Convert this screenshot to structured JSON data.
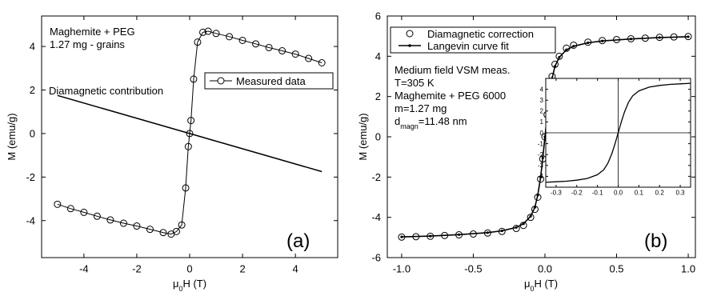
{
  "chart_data": [
    {
      "panel": "(a)",
      "type": "scatter",
      "xlabel": "μ₀H (T)",
      "ylabel": "M (emu/g)",
      "xlim": [
        -5.6,
        5.6
      ],
      "ylim": [
        -5.7,
        5.4
      ],
      "xticks": [
        -4,
        -2,
        0,
        2,
        4
      ],
      "xtick_labels": [
        "-4",
        "-2",
        "0",
        "2",
        "4"
      ],
      "yticks": [
        -4,
        -2,
        0,
        2,
        4
      ],
      "ytick_labels": [
        "-4",
        "-2",
        "0",
        "2",
        "4"
      ],
      "annotations": [
        "Maghemite + PEG",
        "1.27 mg - grains",
        "Diamagnetic contribution"
      ],
      "panel_label": "(a)",
      "legend": {
        "position": "right",
        "entries": [
          "Measured data"
        ]
      },
      "series": [
        {
          "name": "Measured data",
          "style": "line-open-circle",
          "x": [
            -5.0,
            -4.5,
            -4.0,
            -3.5,
            -3.0,
            -2.5,
            -2.0,
            -1.5,
            -1.0,
            -0.7,
            -0.5,
            -0.3,
            -0.15,
            -0.05,
            0.0,
            0.05,
            0.15,
            0.3,
            0.5,
            0.7,
            1.0,
            1.5,
            2.0,
            2.5,
            3.0,
            3.5,
            4.0,
            4.5,
            5.0
          ],
          "y": [
            -3.25,
            -3.45,
            -3.62,
            -3.8,
            -3.97,
            -4.12,
            -4.25,
            -4.4,
            -4.55,
            -4.62,
            -4.5,
            -4.2,
            -2.5,
            -0.6,
            0.0,
            0.6,
            2.5,
            4.2,
            4.65,
            4.7,
            4.6,
            4.45,
            4.28,
            4.12,
            3.95,
            3.8,
            3.65,
            3.45,
            3.25
          ]
        },
        {
          "name": "Diamagnetic contribution",
          "style": "line",
          "x": [
            -5.0,
            5.0
          ],
          "y": [
            1.75,
            -1.75
          ]
        }
      ]
    },
    {
      "panel": "(b)",
      "type": "scatter",
      "xlabel": "μ₀H (T)",
      "ylabel": "M (emu/g)",
      "xlim": [
        -1.1,
        1.05
      ],
      "ylim": [
        -6,
        6
      ],
      "xticks": [
        -1.0,
        -0.5,
        0.0,
        0.5,
        1.0
      ],
      "xtick_labels": [
        "-1.0",
        "-0.5",
        "0.0",
        "0.5",
        "1.0"
      ],
      "yticks": [
        -6,
        -4,
        -2,
        0,
        2,
        4,
        6
      ],
      "ytick_labels": [
        "-6",
        "-4",
        "-2",
        "0",
        "2",
        "4",
        "6"
      ],
      "annotations": [
        "Medium field VSM meas.",
        "T=305 K",
        "Maghemite + PEG 6000",
        "m=1.27 mg",
        "d",
        "magn",
        "=11.48 nm"
      ],
      "panel_label": "(b)",
      "legend": {
        "position": "top-right",
        "entries": [
          "Diamagnetic correction",
          "Langevin curve fit"
        ]
      },
      "series": [
        {
          "name": "Diamagnetic correction",
          "style": "open-circle",
          "x": [
            -1.0,
            -0.9,
            -0.8,
            -0.7,
            -0.6,
            -0.5,
            -0.4,
            -0.3,
            -0.2,
            -0.15,
            -0.1,
            -0.07,
            -0.05,
            -0.03,
            -0.015,
            0.0,
            0.015,
            0.03,
            0.05,
            0.07,
            0.1,
            0.15,
            0.2,
            0.3,
            0.4,
            0.5,
            0.6,
            0.7,
            0.8,
            0.9,
            1.0
          ],
          "y": [
            -4.98,
            -4.96,
            -4.94,
            -4.9,
            -4.87,
            -4.83,
            -4.78,
            -4.7,
            -4.55,
            -4.4,
            -4.0,
            -3.6,
            -3.0,
            -2.1,
            -1.1,
            0.0,
            1.1,
            2.1,
            3.0,
            3.6,
            4.0,
            4.4,
            4.55,
            4.7,
            4.78,
            4.83,
            4.87,
            4.9,
            4.94,
            4.96,
            4.98
          ]
        },
        {
          "name": "Langevin curve fit",
          "style": "line-small-dot",
          "x": [
            -1.0,
            -0.8,
            -0.6,
            -0.4,
            -0.3,
            -0.2,
            -0.15,
            -0.1,
            -0.07,
            -0.05,
            -0.03,
            -0.015,
            0.0,
            0.015,
            0.03,
            0.05,
            0.07,
            0.1,
            0.15,
            0.2,
            0.3,
            0.4,
            0.6,
            0.8,
            1.0
          ],
          "y": [
            -4.97,
            -4.93,
            -4.86,
            -4.76,
            -4.67,
            -4.5,
            -4.32,
            -3.95,
            -3.5,
            -2.9,
            -2.0,
            -1.05,
            0.0,
            1.05,
            2.0,
            2.9,
            3.5,
            3.95,
            4.32,
            4.5,
            4.67,
            4.76,
            4.86,
            4.93,
            4.97
          ]
        }
      ],
      "inset": {
        "type": "line",
        "xlim": [
          -0.35,
          0.35
        ],
        "ylim": [
          -5,
          5
        ],
        "xticks": [
          -0.3,
          -0.2,
          -0.1,
          0.0,
          0.1,
          0.2,
          0.3
        ],
        "xtick_labels": [
          "-0.3",
          "-0.2",
          "-0.1",
          "0.0",
          "0.1",
          "0.2",
          "0.3"
        ],
        "yticks": [
          -4,
          -3,
          -2,
          -1,
          0,
          1,
          2,
          3,
          4
        ],
        "ytick_labels": [
          "-4",
          "-3",
          "-2",
          "-1",
          "0",
          "1",
          "2",
          "3",
          "4"
        ],
        "series": [
          {
            "name": "",
            "x": [
              -0.35,
              -0.3,
              -0.25,
              -0.2,
              -0.15,
              -0.1,
              -0.07,
              -0.05,
              -0.03,
              -0.015,
              0.0,
              0.015,
              0.03,
              0.05,
              0.07,
              0.1,
              0.15,
              0.2,
              0.25,
              0.3,
              0.35
            ],
            "y": [
              -4.55,
              -4.5,
              -4.45,
              -4.35,
              -4.2,
              -3.85,
              -3.4,
              -2.8,
              -1.9,
              -1.0,
              0.0,
              1.0,
              1.9,
              2.8,
              3.4,
              3.85,
              4.2,
              4.35,
              4.45,
              4.5,
              4.55
            ]
          }
        ]
      }
    }
  ]
}
